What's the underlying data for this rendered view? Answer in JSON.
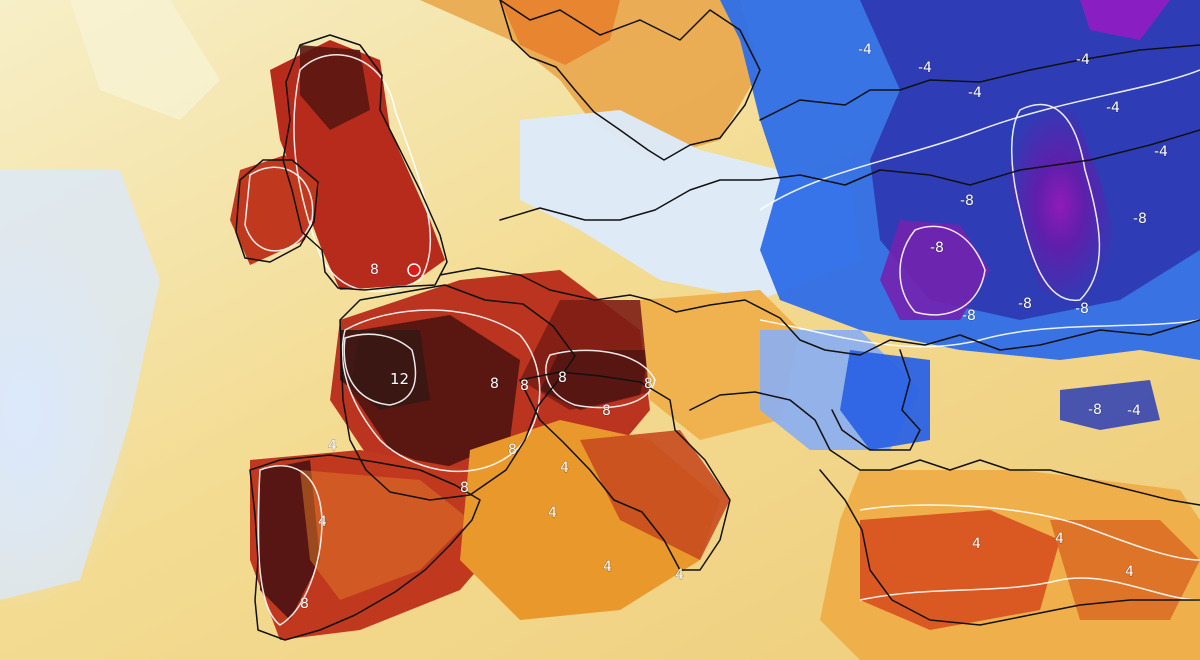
{
  "map": {
    "labels": [
      {
        "text": "12"
      },
      {
        "text": "8"
      },
      {
        "text": "8"
      },
      {
        "text": "8"
      },
      {
        "text": "8"
      },
      {
        "text": "8"
      },
      {
        "text": "8"
      },
      {
        "text": "8"
      },
      {
        "text": "8"
      },
      {
        "text": "8"
      },
      {
        "text": "4"
      },
      {
        "text": "4"
      },
      {
        "text": "4"
      },
      {
        "text": "4"
      },
      {
        "text": "4"
      },
      {
        "text": "4"
      },
      {
        "text": "4"
      },
      {
        "text": "4"
      },
      {
        "text": "4"
      },
      {
        "text": "-4"
      },
      {
        "text": "-4"
      },
      {
        "text": "-4"
      },
      {
        "text": "-4"
      },
      {
        "text": "-4"
      },
      {
        "text": "-4"
      },
      {
        "text": "-4"
      },
      {
        "text": "-8"
      },
      {
        "text": "-8"
      },
      {
        "text": "-8"
      },
      {
        "text": "-8"
      },
      {
        "text": "-8"
      },
      {
        "text": "-8"
      },
      {
        "text": "-8"
      }
    ],
    "colors": {
      "sea_light": "#f7efc8",
      "yellow": "#f2d27a",
      "orange": "#eb8a2e",
      "red": "#b72b1c",
      "darkred": "#5a1712",
      "blue_light": "#dfeefe",
      "blue": "#2a5fe6",
      "navy": "#2c2fa8",
      "purple": "#7b2bb3",
      "magenta": "#b43bc8"
    }
  }
}
